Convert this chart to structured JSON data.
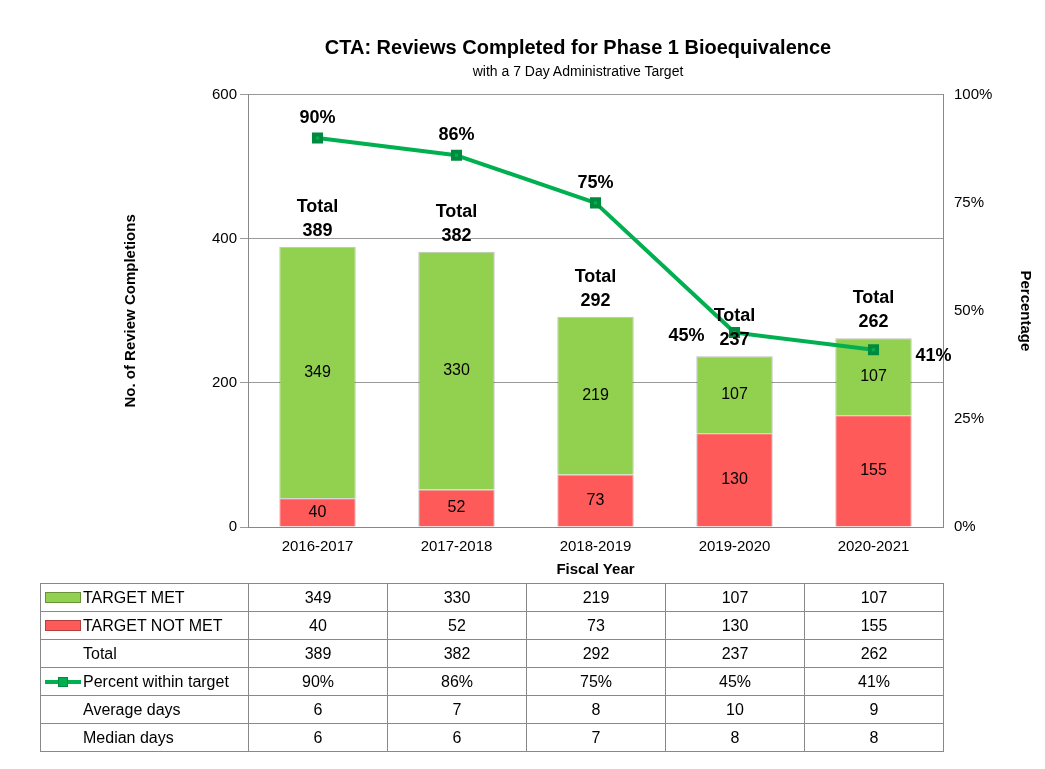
{
  "chart_data": {
    "type": "bar",
    "title": "CTA: Reviews Completed for Phase 1 Bioequivalence",
    "subtitle": "with a 7 Day Administrative Target",
    "xlabel": "Fiscal Year",
    "ylabel": "No. of Review Completions",
    "y2label": "Percentage",
    "categories": [
      "2016-2017",
      "2017-2018",
      "2018-2019",
      "2019-2020",
      "2020-2021"
    ],
    "stacked": true,
    "grid": "y",
    "marker": "square",
    "legend": "bottom",
    "series": [
      {
        "name": "TARGET NOT MET",
        "color": "#ff5a5a",
        "values": [
          40,
          52,
          73,
          130,
          155
        ],
        "value_labels": [
          "40",
          "52",
          "73",
          "130",
          "155"
        ]
      },
      {
        "name": "TARGET MET",
        "color": "#92d050",
        "values": [
          349,
          330,
          219,
          107,
          107
        ],
        "value_labels": [
          "349",
          "330",
          "219",
          "107",
          "107"
        ]
      },
      {
        "name": "Percent within target",
        "type": "line",
        "axis": "y2",
        "color": "#00b050",
        "values": [
          90,
          86,
          75,
          45,
          41
        ],
        "value_labels": [
          "90%",
          "86%",
          "75%",
          "45%",
          "41%"
        ]
      }
    ],
    "totals": [
      "Total 389",
      "Total 382",
      "Total 292",
      "Total 237",
      "Total 262"
    ],
    "annotations": [
      "Total",
      "389",
      "382",
      "292",
      "237",
      "262",
      "Average days",
      "6",
      "7",
      "8",
      "10",
      "9",
      "Median days",
      "6",
      "6",
      "7",
      "8",
      "8"
    ],
    "ylim": [
      0,
      600
    ],
    "yticks": [
      0,
      200,
      400,
      600
    ],
    "y2lim": [
      0,
      100
    ],
    "y2ticks": [
      {
        "value": 0,
        "label": "0%"
      },
      {
        "value": 25,
        "label": "25%"
      },
      {
        "value": 50,
        "label": "50%"
      },
      {
        "value": 75,
        "label": "75%"
      },
      {
        "value": 100,
        "label": "100%"
      }
    ]
  }
}
